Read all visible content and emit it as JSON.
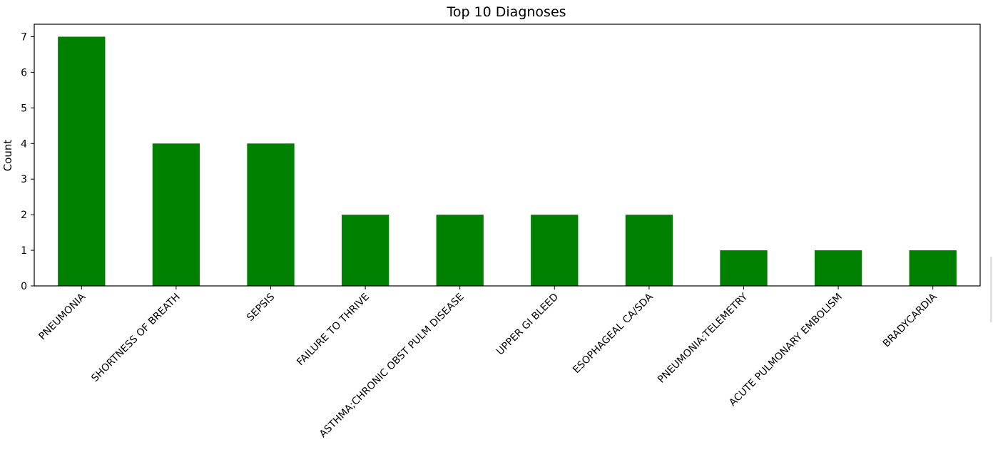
{
  "chart_data": {
    "type": "bar",
    "title": "Top 10 Diagnoses",
    "xlabel": "",
    "ylabel": "Count",
    "categories": [
      "PNEUMONIA",
      "SHORTNESS OF BREATH",
      "SEPSIS",
      "FAILURE TO THRIVE",
      "ASTHMA;CHRONIC OBST PULM DISEASE",
      "UPPER GI BLEED",
      "ESOPHAGEAL CA/SDA",
      "PNEUMONIA;TELEMETRY",
      "ACUTE PULMONARY EMBOLISM",
      "BRADYCARDIA"
    ],
    "values": [
      7,
      4,
      4,
      2,
      2,
      2,
      2,
      1,
      1,
      1
    ],
    "ylim": [
      0,
      7.35
    ],
    "yticks": [
      0,
      1,
      2,
      3,
      4,
      5,
      6,
      7
    ],
    "grid": false,
    "legend": "none",
    "bar_color": "#008000"
  }
}
